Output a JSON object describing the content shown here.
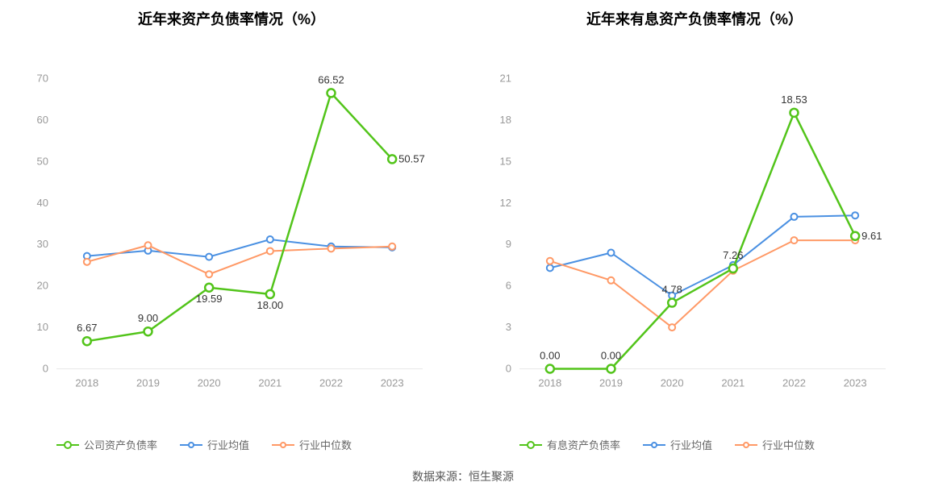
{
  "source_label": "数据来源：恒生聚源",
  "categories": [
    "2018",
    "2019",
    "2020",
    "2021",
    "2022",
    "2023"
  ],
  "colors": {
    "series_company": "#52c41a",
    "series_industry_avg": "#4a90e2",
    "series_industry_median": "#ff9966",
    "axis_text": "#999999",
    "grid": "#e8e8e8",
    "label_text": "#333333",
    "background": "#ffffff"
  },
  "marker": {
    "company_radius": 5,
    "other_radius": 4,
    "line_width_company": 2.5,
    "line_width_other": 2
  },
  "left_chart": {
    "title": "近年来资产负债率情况（%）",
    "ylim": [
      0,
      70
    ],
    "ytick_step": 10,
    "series": [
      {
        "key": "company",
        "name": "公司资产负债率",
        "color_key": "series_company",
        "values": [
          6.67,
          9.0,
          19.59,
          18.0,
          66.52,
          50.57
        ],
        "labels": [
          "6.67",
          "9.00",
          "19.59",
          "18.00",
          "66.52",
          "50.57"
        ],
        "show_labels": true,
        "emphasis": true
      },
      {
        "key": "industry_avg",
        "name": "行业均值",
        "color_key": "series_industry_avg",
        "values": [
          27.2,
          28.5,
          27.0,
          31.2,
          29.5,
          29.3
        ],
        "show_labels": false
      },
      {
        "key": "industry_median",
        "name": "行业中位数",
        "color_key": "series_industry_median",
        "values": [
          25.8,
          29.8,
          22.8,
          28.4,
          29.0,
          29.5
        ],
        "show_labels": false
      }
    ],
    "legend": [
      {
        "label": "公司资产负债率",
        "color_key": "series_company",
        "emphasis": true
      },
      {
        "label": "行业均值",
        "color_key": "series_industry_avg",
        "emphasis": false
      },
      {
        "label": "行业中位数",
        "color_key": "series_industry_median",
        "emphasis": false
      }
    ]
  },
  "right_chart": {
    "title": "近年来有息资产负债率情况（%）",
    "ylim": [
      0,
      21
    ],
    "ytick_step": 3,
    "series": [
      {
        "key": "company",
        "name": "有息资产负债率",
        "color_key": "series_company",
        "values": [
          0.0,
          0.0,
          4.78,
          7.26,
          18.53,
          9.61
        ],
        "labels": [
          "0.00",
          "0.00",
          "4.78",
          "7.26",
          "18.53",
          "9.61"
        ],
        "show_labels": true,
        "emphasis": true
      },
      {
        "key": "industry_avg",
        "name": "行业均值",
        "color_key": "series_industry_avg",
        "values": [
          7.3,
          8.4,
          5.3,
          7.5,
          11.0,
          11.1
        ],
        "show_labels": false
      },
      {
        "key": "industry_median",
        "name": "行业中位数",
        "color_key": "series_industry_median",
        "values": [
          7.8,
          6.4,
          3.0,
          7.1,
          9.3,
          9.3
        ],
        "show_labels": false
      }
    ],
    "legend": [
      {
        "label": "有息资产负债率",
        "color_key": "series_company",
        "emphasis": true
      },
      {
        "label": "行业均值",
        "color_key": "series_industry_avg",
        "emphasis": false
      },
      {
        "label": "行业中位数",
        "color_key": "series_industry_median",
        "emphasis": false
      }
    ]
  }
}
